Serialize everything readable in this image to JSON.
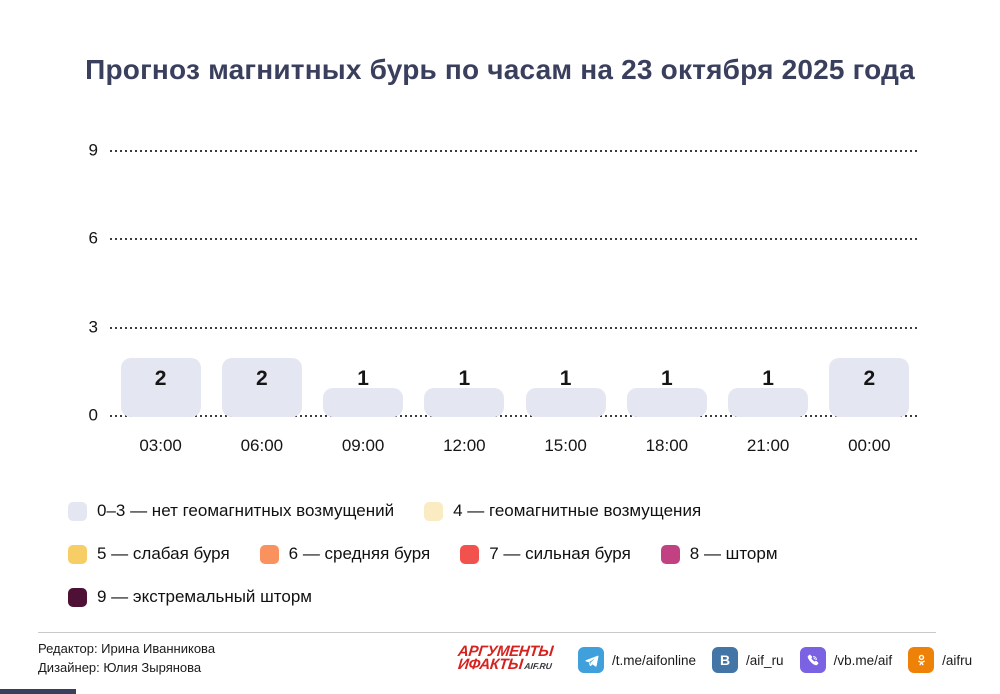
{
  "title": "Прогноз магнитных бурь по часам на 23 октября 2025 года",
  "chart_data": {
    "type": "bar",
    "categories": [
      "03:00",
      "06:00",
      "09:00",
      "12:00",
      "15:00",
      "18:00",
      "21:00",
      "00:00"
    ],
    "values": [
      2,
      2,
      1,
      1,
      1,
      1,
      1,
      2
    ],
    "title": "Прогноз магнитных бурь по часам на 23 октября 2025 года",
    "xlabel": "",
    "ylabel": "",
    "ylim": [
      0,
      9
    ],
    "yticks": [
      0,
      3,
      6,
      9
    ],
    "grid": "horizontal-dotted",
    "bar_color": "#E4E6F1",
    "value_label_color": "#161616",
    "legend_position": "bottom"
  },
  "legend": {
    "rows": [
      [
        {
          "color": "#E4E6F1",
          "label": "0–3 — нет геомагнитных возмущений"
        },
        {
          "color": "#FBEBC2",
          "label": "4 — геомагнитные возмущения"
        }
      ],
      [
        {
          "color": "#F6CE65",
          "label": "5 — слабая буря"
        },
        {
          "color": "#F9925F",
          "label": "6 — средняя буря"
        },
        {
          "color": "#F2524E",
          "label": "7 — сильная буря"
        },
        {
          "color": "#C24183",
          "label": "8 — шторм"
        }
      ],
      [
        {
          "color": "#4E1034",
          "label": "9 — экстремальный шторм"
        }
      ]
    ]
  },
  "footer": {
    "editor": "Редактор: Ирина Иванникова",
    "designer": "Дизайнер: Юлия Зырянова",
    "logo": {
      "line1": "АРГУМЕНТЫ",
      "line2": "ИФАКТЫ",
      "suffix": "AIF.RU",
      "color": "#D6221F"
    },
    "socials": [
      {
        "icon": "telegram-icon",
        "color": "#3FA0DC",
        "handle": "/t.me/aifonline"
      },
      {
        "icon": "vk-icon",
        "color": "#4376A6",
        "handle": "/aif_ru"
      },
      {
        "icon": "viber-icon",
        "color": "#7A62E2",
        "handle": "/vb.me/aif"
      },
      {
        "icon": "ok-icon",
        "color": "#EE8208",
        "handle": "/aifru"
      }
    ]
  },
  "colors": {
    "title_text": "#3A3F5E",
    "grid_dots": "#3c3c3c",
    "divider": "#C9C9C9",
    "corner_bar": "#39405E"
  }
}
